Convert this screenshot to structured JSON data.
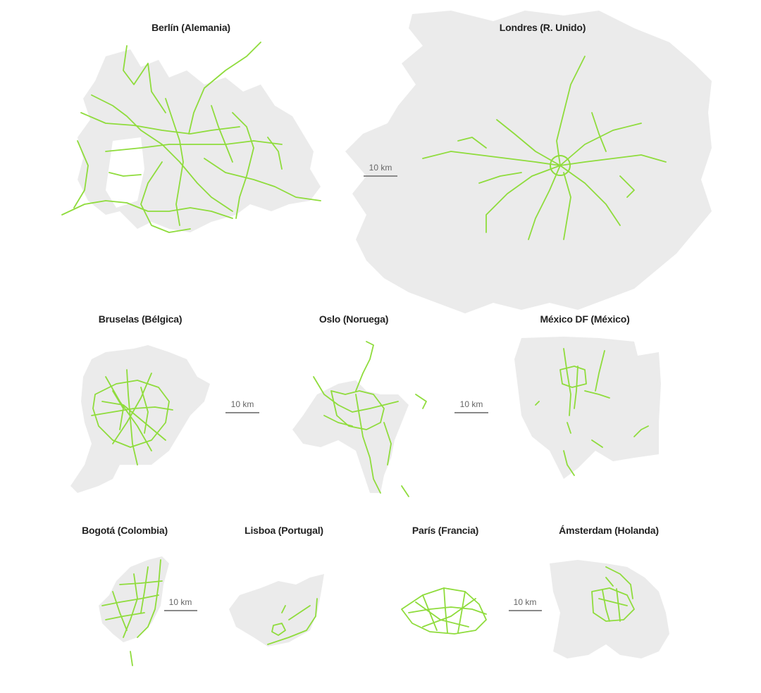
{
  "colors": {
    "land": "#ebebeb",
    "route": "#8fdc3c",
    "text": "#222222",
    "scale": "#8a8a8a"
  },
  "cities": [
    {
      "id": "berlin",
      "name": "Berlín (Alemania)"
    },
    {
      "id": "london",
      "name": "Londres (R. Unido)"
    },
    {
      "id": "brussels",
      "name": "Bruselas (Bélgica)"
    },
    {
      "id": "oslo",
      "name": "Oslo (Noruega)"
    },
    {
      "id": "mexico",
      "name": "México DF (México)"
    },
    {
      "id": "bogota",
      "name": "Bogotá (Colombia)"
    },
    {
      "id": "lisbon",
      "name": "Lisboa (Portugal)"
    },
    {
      "id": "paris",
      "name": "París (Francia)"
    },
    {
      "id": "amsterdam",
      "name": "Ámsterdam (Holanda)"
    }
  ],
  "scale_bars": [
    {
      "label": "10 km"
    },
    {
      "label": "10 km"
    },
    {
      "label": "10 km"
    },
    {
      "label": "10 km"
    },
    {
      "label": "10 km"
    }
  ]
}
